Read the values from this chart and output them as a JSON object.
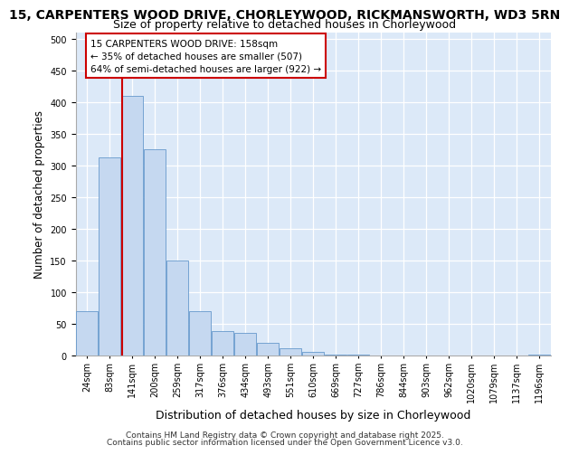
{
  "title_line1": "15, CARPENTERS WOOD DRIVE, CHORLEYWOOD, RICKMANSWORTH, WD3 5RN",
  "title_line2": "Size of property relative to detached houses in Chorleywood",
  "xlabel": "Distribution of detached houses by size in Chorleywood",
  "ylabel": "Number of detached properties",
  "categories": [
    "24sqm",
    "83sqm",
    "141sqm",
    "200sqm",
    "259sqm",
    "317sqm",
    "376sqm",
    "434sqm",
    "493sqm",
    "551sqm",
    "610sqm",
    "669sqm",
    "727sqm",
    "786sqm",
    "844sqm",
    "903sqm",
    "962sqm",
    "1020sqm",
    "1079sqm",
    "1137sqm",
    "1196sqm"
  ],
  "values": [
    70,
    312,
    410,
    325,
    150,
    70,
    38,
    35,
    20,
    12,
    5,
    2,
    2,
    0,
    0,
    0,
    0,
    0,
    0,
    0,
    2
  ],
  "bar_color": "#c5d8f0",
  "bar_edge_color": "#6699cc",
  "vline_x": 1.55,
  "vline_color": "#cc0000",
  "annotation_title": "15 CARPENTERS WOOD DRIVE: 158sqm",
  "annotation_smaller": "← 35% of detached houses are smaller (507)",
  "annotation_larger": "64% of semi-detached houses are larger (922) →",
  "background_color": "#dce9f8",
  "grid_color": "#ffffff",
  "footer_line1": "Contains HM Land Registry data © Crown copyright and database right 2025.",
  "footer_line2": "Contains public sector information licensed under the Open Government Licence v3.0.",
  "ylim_max": 510,
  "yticks": [
    0,
    50,
    100,
    150,
    200,
    250,
    300,
    350,
    400,
    450,
    500
  ],
  "title_fontsize": 10,
  "subtitle_fontsize": 9,
  "ylabel_fontsize": 8.5,
  "xlabel_fontsize": 9,
  "tick_fontsize": 7,
  "annot_fontsize": 7.5,
  "footer_fontsize": 6.5
}
